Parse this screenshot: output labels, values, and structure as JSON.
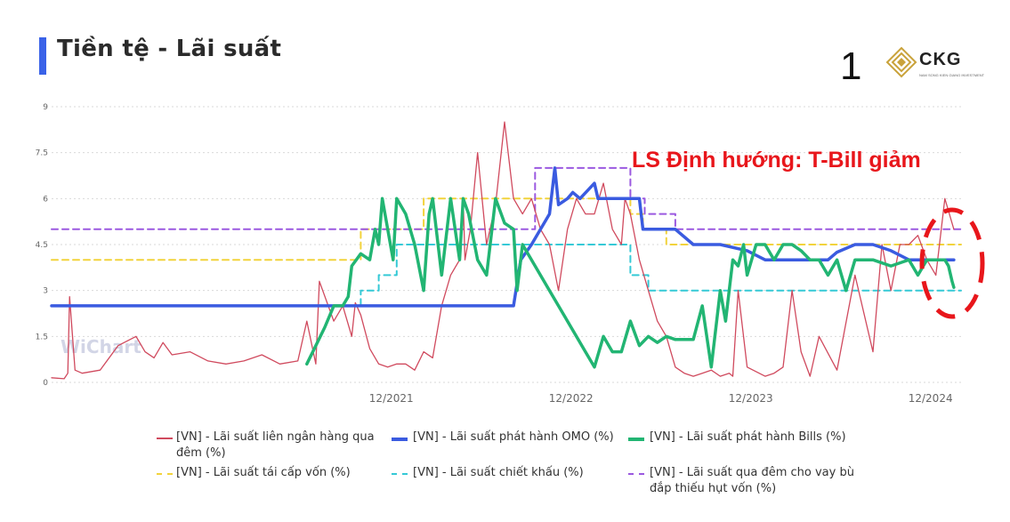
{
  "header": {
    "title": "Tiền tệ - Lãi suất",
    "page_number": "1",
    "logo_text": "CKG",
    "logo_subtext": "NAM SONG KIEN GIANG INVESTMENT",
    "accent_color": "#3a62e8"
  },
  "annotation": {
    "text": "LS Định hướng: T-Bill giảm",
    "color": "#e8161b"
  },
  "watermark": "WiChart",
  "chart_data": {
    "type": "line",
    "ylim": [
      0,
      9
    ],
    "yticks": [
      "0",
      "1.5",
      "3",
      "4.5",
      "6",
      "7.5",
      "9"
    ],
    "xlim": [
      2020.03,
      2025.09
    ],
    "xticks": [
      {
        "label": "12/2021",
        "x": 2021.92
      },
      {
        "label": "12/2022",
        "x": 2022.92
      },
      {
        "label": "12/2023",
        "x": 2023.92
      },
      {
        "label": "12/2024",
        "x": 2024.92
      }
    ],
    "grid": true,
    "legend_position": "bottom",
    "series": [
      {
        "name": "[VN] - Lãi suất liên ngân hàng qua đêm (%)",
        "color": "#d04a5e",
        "style": "thin",
        "x": [
          2020.03,
          2020.1,
          2020.12,
          2020.13,
          2020.16,
          2020.2,
          2020.3,
          2020.4,
          2020.5,
          2020.55,
          2020.6,
          2020.65,
          2020.7,
          2020.8,
          2020.9,
          2021.0,
          2021.1,
          2021.2,
          2021.3,
          2021.4,
          2021.45,
          2021.5,
          2021.52,
          2021.6,
          2021.65,
          2021.7,
          2021.72,
          2021.75,
          2021.8,
          2021.85,
          2021.9,
          2021.95,
          2022.0,
          2022.05,
          2022.1,
          2022.15,
          2022.2,
          2022.25,
          2022.3,
          2022.32,
          2022.33,
          2022.36,
          2022.4,
          2022.45,
          2022.5,
          2022.55,
          2022.6,
          2022.65,
          2022.7,
          2022.75,
          2022.8,
          2022.85,
          2022.9,
          2022.95,
          2023.0,
          2023.05,
          2023.1,
          2023.15,
          2023.2,
          2023.22,
          2023.25,
          2023.3,
          2023.35,
          2023.4,
          2023.45,
          2023.5,
          2023.55,
          2023.6,
          2023.65,
          2023.7,
          2023.75,
          2023.8,
          2023.82,
          2023.85,
          2023.9,
          2024.0,
          2024.05,
          2024.1,
          2024.15,
          2024.2,
          2024.25,
          2024.3,
          2024.4,
          2024.5,
          2024.6,
          2024.65,
          2024.7,
          2024.75,
          2024.8,
          2024.85,
          2024.9,
          2024.95,
          2025.0,
          2025.05
        ],
        "y": [
          0.15,
          0.12,
          0.3,
          2.8,
          0.4,
          0.3,
          0.4,
          1.2,
          1.5,
          1.0,
          0.8,
          1.3,
          0.9,
          1.0,
          0.7,
          0.6,
          0.7,
          0.9,
          0.6,
          0.7,
          2.0,
          0.6,
          3.3,
          2.0,
          2.5,
          1.5,
          2.6,
          2.2,
          1.1,
          0.6,
          0.5,
          0.6,
          0.6,
          0.4,
          1.0,
          0.8,
          2.5,
          3.5,
          4.0,
          6.0,
          4.0,
          5.0,
          7.5,
          4.5,
          5.8,
          8.5,
          6.0,
          5.5,
          6.0,
          5.0,
          4.5,
          3.0,
          5.0,
          6.0,
          5.5,
          5.5,
          6.5,
          5.0,
          4.5,
          6.0,
          5.5,
          4.0,
          3.0,
          2.0,
          1.5,
          0.5,
          0.3,
          0.2,
          0.3,
          0.4,
          0.2,
          0.3,
          0.2,
          3.0,
          0.5,
          0.2,
          0.3,
          0.5,
          3.0,
          1.0,
          0.2,
          1.5,
          0.4,
          3.5,
          1.0,
          4.5,
          3.0,
          4.5,
          4.5,
          4.8,
          4.0,
          3.5,
          6.0,
          5.0
        ]
      },
      {
        "name": "[VN] - Lãi suất phát hành OMO (%)",
        "color": "#3a5be0",
        "style": "thick",
        "x": [
          2020.03,
          2022.6,
          2022.64,
          2022.7,
          2022.75,
          2022.8,
          2022.83,
          2022.85,
          2022.9,
          2022.93,
          2022.97,
          2023.05,
          2023.07,
          2023.1,
          2023.15,
          2023.3,
          2023.32,
          2023.4,
          2023.5,
          2023.6,
          2023.75,
          2023.9,
          2024.0,
          2024.2,
          2024.3,
          2024.35,
          2024.4,
          2024.5,
          2024.6,
          2024.7,
          2024.8,
          2024.9,
          2025.0,
          2025.05
        ],
        "y": [
          2.5,
          2.5,
          4.0,
          4.5,
          5.0,
          5.5,
          7.0,
          5.8,
          6.0,
          6.2,
          6.0,
          6.5,
          6.0,
          6.0,
          6.0,
          6.0,
          5.0,
          5.0,
          5.0,
          4.5,
          4.5,
          4.3,
          4.0,
          4.0,
          4.0,
          4.0,
          4.25,
          4.5,
          4.5,
          4.3,
          4.0,
          4.0,
          4.0,
          4.0
        ]
      },
      {
        "name": "[VN] - Lãi suất phát hành Bills (%)",
        "color": "#22b573",
        "style": "thick",
        "x": [
          2021.45,
          2021.5,
          2021.55,
          2021.6,
          2021.65,
          2021.68,
          2021.7,
          2021.75,
          2021.8,
          2021.83,
          2021.85,
          2021.87,
          2021.9,
          2021.93,
          2021.95,
          2022.0,
          2022.05,
          2022.1,
          2022.13,
          2022.15,
          2022.2,
          2022.25,
          2022.3,
          2022.32,
          2022.35,
          2022.4,
          2022.45,
          2022.5,
          2022.55,
          2022.6,
          2022.62,
          2022.65,
          2022.7,
          2022.8,
          2022.9,
          2023.0,
          2023.05,
          2023.1,
          2023.15,
          2023.2,
          2023.25,
          2023.3,
          2023.35,
          2023.4,
          2023.45,
          2023.5,
          2023.55,
          2023.6,
          2023.65,
          2023.7,
          2023.75,
          2023.78,
          2023.82,
          2023.85,
          2023.88,
          2023.9,
          2023.95,
          2024.0,
          2024.05,
          2024.1,
          2024.15,
          2024.2,
          2024.25,
          2024.3,
          2024.35,
          2024.4,
          2024.45,
          2024.5,
          2024.55,
          2024.6,
          2024.7,
          2024.8,
          2024.85,
          2024.9,
          2024.95,
          2025.0,
          2025.02,
          2025.04,
          2025.05
        ],
        "y": [
          0.6,
          1.2,
          1.8,
          2.5,
          2.5,
          2.8,
          3.8,
          4.2,
          4.0,
          5.0,
          4.5,
          6.0,
          5.0,
          4.0,
          6.0,
          5.5,
          4.5,
          3.0,
          5.5,
          6.0,
          3.5,
          6.0,
          4.0,
          6.0,
          5.5,
          4.0,
          3.5,
          6.0,
          5.2,
          5.0,
          3.0,
          4.5,
          4.0,
          3.0,
          2.0,
          1.0,
          0.5,
          1.5,
          1.0,
          1.0,
          2.0,
          1.2,
          1.5,
          1.3,
          1.5,
          1.4,
          1.4,
          1.4,
          2.5,
          0.5,
          3.0,
          2.0,
          4.0,
          3.8,
          4.5,
          3.5,
          4.5,
          4.5,
          4.0,
          4.5,
          4.5,
          4.3,
          4.0,
          4.0,
          3.5,
          4.0,
          3.0,
          4.0,
          4.0,
          4.0,
          3.8,
          4.0,
          3.5,
          4.0,
          4.0,
          4.0,
          3.8,
          3.3,
          3.1
        ]
      },
      {
        "name": "[VN] - Lãi suất tái cấp vốn (%)",
        "color": "#f2d33c",
        "style": "dashed",
        "x": [
          2020.03,
          2021.55,
          2021.55,
          2021.75,
          2021.75,
          2022.1,
          2022.1,
          2022.7,
          2022.7,
          2023.25,
          2023.25,
          2023.32,
          2023.32,
          2023.45,
          2023.45,
          2024.3,
          2024.3,
          2025.09
        ],
        "y": [
          4.0,
          4.0,
          4.0,
          4.0,
          5.0,
          5.0,
          6.0,
          6.0,
          6.0,
          6.0,
          5.5,
          5.5,
          5.0,
          5.0,
          4.5,
          4.5,
          4.5,
          4.5
        ]
      },
      {
        "name": "[VN] - Lãi suất chiết khấu (%)",
        "color": "#35c9d6",
        "style": "dashed",
        "x": [
          2020.03,
          2021.55,
          2021.55,
          2021.75,
          2021.75,
          2021.85,
          2021.85,
          2021.95,
          2021.95,
          2022.5,
          2022.5,
          2022.6,
          2022.6,
          2022.68,
          2022.68,
          2023.25,
          2023.25,
          2023.35,
          2023.35,
          2023.45,
          2023.45,
          2025.09
        ],
        "y": [
          2.5,
          2.5,
          2.5,
          2.5,
          3.0,
          3.0,
          3.5,
          3.5,
          4.5,
          4.5,
          4.5,
          4.5,
          4.5,
          4.5,
          4.5,
          4.5,
          3.5,
          3.5,
          3.0,
          3.0,
          3.0,
          3.0
        ]
      },
      {
        "name": "[VN] - Lãi suất qua đêm cho vay bù đắp thiếu hụt vốn (%)",
        "color": "#9b59e0",
        "style": "dashed",
        "x": [
          2020.03,
          2021.6,
          2021.6,
          2022.72,
          2022.72,
          2023.25,
          2023.25,
          2023.33,
          2023.33,
          2023.5,
          2023.5,
          2025.09
        ],
        "y": [
          5.0,
          5.0,
          5.0,
          5.0,
          7.0,
          7.0,
          6.0,
          6.0,
          5.5,
          5.5,
          5.0,
          5.0
        ]
      }
    ]
  }
}
